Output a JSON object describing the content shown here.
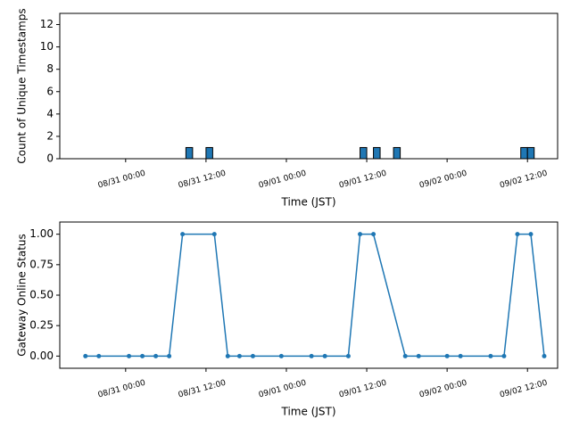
{
  "chart_data": [
    {
      "type": "bar",
      "ylabel": "Count of Unique Timestamps",
      "xlabel": "Time (JST)",
      "x": [
        "08/31 09:30",
        "08/31 12:30",
        "09/01 11:30",
        "09/01 13:30",
        "09/01 16:30",
        "09/02 11:30",
        "09/02 12:30"
      ],
      "values": [
        1,
        1,
        1,
        1,
        1,
        1,
        1
      ],
      "color": "#1f77b4",
      "xlim": [
        "08/30 14:10",
        "09/02 16:30"
      ],
      "xticks": [
        "08/31 00:00",
        "08/31 12:00",
        "09/01 00:00",
        "09/01 12:00",
        "09/02 00:00",
        "09/02 12:00"
      ],
      "ylim": [
        0,
        13
      ],
      "yticks": [
        0,
        2,
        4,
        6,
        8,
        10,
        12
      ]
    },
    {
      "type": "line",
      "ylabel": "Gateway Online Status",
      "xlabel": "Time (JST)",
      "x": [
        "08/30 18:00",
        "08/30 20:00",
        "08/31 00:30",
        "08/31 02:30",
        "08/31 04:30",
        "08/31 06:30",
        "08/31 08:30",
        "08/31 13:15",
        "08/31 15:15",
        "08/31 17:00",
        "08/31 19:00",
        "08/31 23:15",
        "09/01 03:45",
        "09/01 05:45",
        "09/01 09:15",
        "09/01 11:00",
        "09/01 13:00",
        "09/01 17:45",
        "09/01 19:45",
        "09/02 00:00",
        "09/02 02:00",
        "09/02 06:30",
        "09/02 08:30",
        "09/02 10:30",
        "09/02 12:30",
        "09/02 14:30"
      ],
      "values": [
        0,
        0,
        0,
        0,
        0,
        0,
        1,
        1,
        0,
        0,
        0,
        0,
        0,
        0,
        0,
        1,
        1,
        0,
        0,
        0,
        0,
        0,
        0,
        1,
        1,
        0
      ],
      "color": "#1f77b4",
      "xlim": [
        "08/30 14:10",
        "09/02 16:30"
      ],
      "xticks": [
        "08/31 00:00",
        "08/31 12:00",
        "09/01 00:00",
        "09/01 12:00",
        "09/02 00:00",
        "09/02 12:00"
      ],
      "ylim": [
        -0.1,
        1.1
      ],
      "yticks": [
        {
          "value": 0,
          "label": "0.00"
        },
        {
          "value": 0.25,
          "label": "0.25"
        },
        {
          "value": 0.5,
          "label": "0.50"
        },
        {
          "value": 0.75,
          "label": "0.75"
        },
        {
          "value": 1,
          "label": "1.00"
        }
      ]
    }
  ]
}
